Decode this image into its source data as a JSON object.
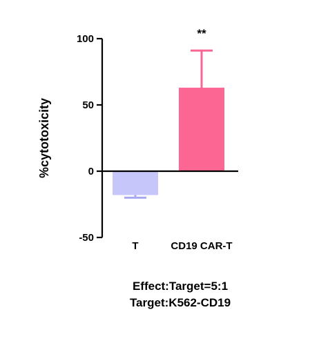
{
  "chart_data": {
    "type": "bar",
    "categories": [
      "T",
      "CD19 CAR-T"
    ],
    "values": [
      -18,
      63
    ],
    "error_upper": [
      null,
      91
    ],
    "error_lower": [
      -20,
      null
    ],
    "colors": [
      "#c6c6fb",
      "#fc6693"
    ],
    "annotations": [
      {
        "category_index": 1,
        "text": "**"
      }
    ],
    "ylabel": "%cytotoxicity",
    "xlabel": "",
    "title": "",
    "ylim": [
      -50,
      100
    ],
    "yticks": [
      -50,
      0,
      50,
      100
    ],
    "grid": false,
    "legend": "none"
  },
  "captions": [
    "Effect:Target=5:1",
    "Target:K562-CD19"
  ]
}
